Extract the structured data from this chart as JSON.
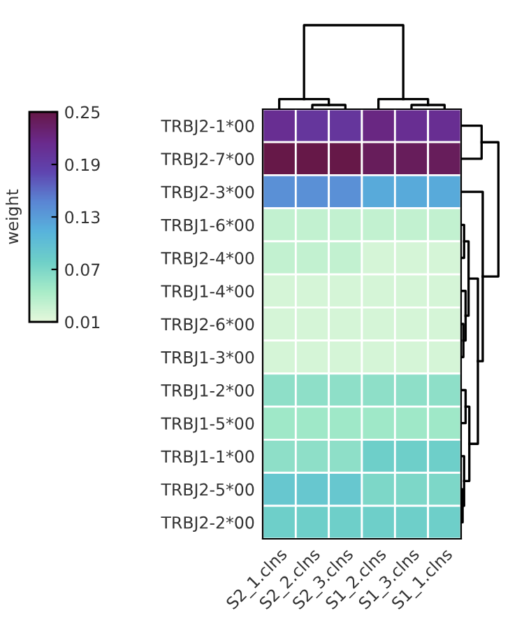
{
  "chart_data": {
    "type": "heatmap",
    "clabel": "weight",
    "categories": [
      "S2_1.clns",
      "S2_2.clns",
      "S2_3.clns",
      "S1_2.clns",
      "S1_3.clns",
      "S1_1.clns"
    ],
    "y_categories": [
      "TRBJ2-1*00",
      "TRBJ2-7*00",
      "TRBJ2-3*00",
      "TRBJ1-6*00",
      "TRBJ2-4*00",
      "TRBJ1-4*00",
      "TRBJ2-6*00",
      "TRBJ1-3*00",
      "TRBJ1-2*00",
      "TRBJ1-5*00",
      "TRBJ1-1*00",
      "TRBJ2-5*00",
      "TRBJ2-2*00"
    ],
    "cells": [
      [
        0.21,
        0.2,
        0.2,
        0.22,
        0.21,
        0.21
      ],
      [
        0.25,
        0.25,
        0.25,
        0.24,
        0.24,
        0.24
      ],
      [
        0.14,
        0.14,
        0.14,
        0.12,
        0.12,
        0.12
      ],
      [
        0.03,
        0.03,
        0.03,
        0.03,
        0.03,
        0.03
      ],
      [
        0.03,
        0.03,
        0.03,
        0.02,
        0.02,
        0.02
      ],
      [
        0.02,
        0.02,
        0.02,
        0.02,
        0.02,
        0.02
      ],
      [
        0.02,
        0.02,
        0.02,
        0.02,
        0.02,
        0.02
      ],
      [
        0.02,
        0.02,
        0.02,
        0.02,
        0.02,
        0.02
      ],
      [
        0.06,
        0.06,
        0.06,
        0.06,
        0.06,
        0.06
      ],
      [
        0.05,
        0.05,
        0.05,
        0.05,
        0.05,
        0.05
      ],
      [
        0.06,
        0.06,
        0.06,
        0.08,
        0.08,
        0.08
      ],
      [
        0.09,
        0.09,
        0.09,
        0.07,
        0.07,
        0.07
      ],
      [
        0.08,
        0.08,
        0.08,
        0.08,
        0.08,
        0.08
      ]
    ],
    "clim": [
      0.01,
      0.25
    ],
    "cticks": [
      0.01,
      0.07,
      0.13,
      0.19,
      0.25
    ]
  }
}
